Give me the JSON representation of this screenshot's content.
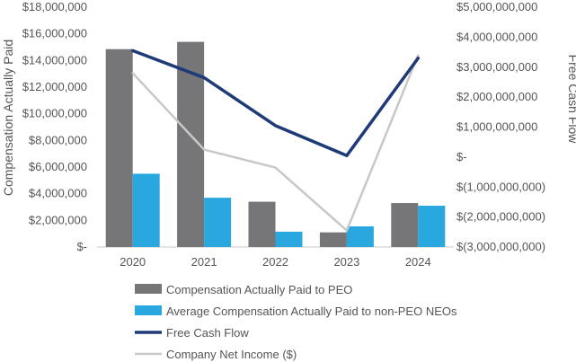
{
  "chart_data": {
    "type": "bar",
    "categories": [
      "2020",
      "2021",
      "2022",
      "2023",
      "2024"
    ],
    "left_axis": {
      "title": "Compensation Actually Paid",
      "ylim": [
        0,
        18000000
      ],
      "ticks": [
        0,
        2000000,
        4000000,
        6000000,
        8000000,
        10000000,
        12000000,
        14000000,
        16000000,
        18000000
      ],
      "tick_labels": [
        "$-",
        "$2,000,000",
        "$4,000,000",
        "$6,000,000",
        "$8,000,000",
        "$10,000,000",
        "$12,000,000",
        "$14,000,000",
        "$16,000,000",
        "$18,000,000"
      ]
    },
    "right_axis": {
      "title": "Free Cash Flow",
      "ylim": [
        -3000000000,
        5000000000
      ],
      "ticks": [
        -3000000000,
        -2000000000,
        -1000000000,
        0,
        1000000000,
        2000000000,
        3000000000,
        4000000000,
        5000000000
      ],
      "tick_labels": [
        "$(3,000,000,000)",
        "$(2,000,000,000)",
        "$(1,000,000,000)",
        "$-",
        "$1,000,000,000",
        "$2,000,000,000",
        "$3,000,000,000",
        "$4,000,000,000",
        "$5,000,000,000"
      ]
    },
    "series": [
      {
        "name": "Compensation Actually Paid to PEO",
        "type": "bar",
        "axis": "left",
        "color": "#767679",
        "values": [
          14850000,
          15400000,
          3400000,
          1100000,
          3300000
        ]
      },
      {
        "name": "Average Compensation Actually Paid to non-PEO NEOs",
        "type": "bar",
        "axis": "left",
        "color": "#29a8e0",
        "values": [
          5500000,
          3700000,
          1150000,
          1550000,
          3100000
        ]
      },
      {
        "name": "Free Cash Flow",
        "type": "line",
        "axis": "right",
        "color": "#1f3a78",
        "values": [
          3550000000,
          2650000000,
          1050000000,
          50000000,
          3300000000
        ]
      },
      {
        "name": "Company Net Income ($)",
        "type": "line",
        "axis": "right",
        "color": "#c8c8c8",
        "values": [
          2800000000,
          250000000,
          -350000000,
          -2450000000,
          3400000000
        ]
      }
    ],
    "legend_position": "bottom"
  }
}
